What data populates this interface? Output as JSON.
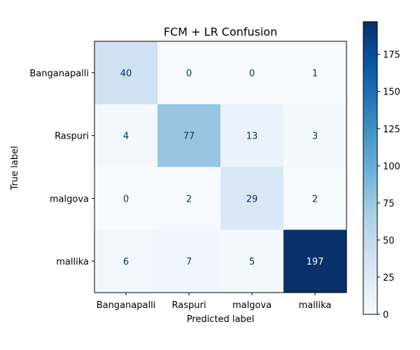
{
  "chart_data": {
    "type": "heatmap",
    "title": "FCM + LR Confusion",
    "xlabel": "Predicted label",
    "ylabel": "True label",
    "x_categories": [
      "Banganapalli",
      "Raspuri",
      "malgova",
      "mallika"
    ],
    "y_categories": [
      "Banganapalli",
      "Raspuri",
      "malgova",
      "mallika"
    ],
    "values": [
      [
        40,
        0,
        0,
        1
      ],
      [
        4,
        77,
        13,
        3
      ],
      [
        0,
        2,
        29,
        2
      ],
      [
        6,
        7,
        5,
        197
      ]
    ],
    "colormap": "Blues",
    "color_range": [
      0,
      197
    ],
    "colorbar_ticks": [
      0,
      25,
      50,
      75,
      100,
      125,
      150,
      175
    ],
    "grid": false
  }
}
